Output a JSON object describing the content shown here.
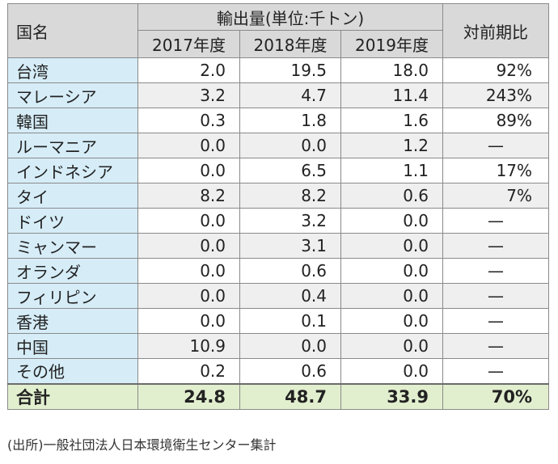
{
  "table": {
    "header": {
      "country": "国名",
      "group": "輸出量(単位:千トン)",
      "years": [
        "2017年度",
        "2018年度",
        "2019年度"
      ],
      "ratio": "対前期比"
    },
    "rows": [
      {
        "name": "台湾",
        "v2017": "2.0",
        "v2018": "19.5",
        "v2019": "18.0",
        "ratio": "92%"
      },
      {
        "name": "マレーシア",
        "v2017": "3.2",
        "v2018": "4.7",
        "v2019": "11.4",
        "ratio": "243%"
      },
      {
        "name": "韓国",
        "v2017": "0.3",
        "v2018": "1.8",
        "v2019": "1.6",
        "ratio": "89%"
      },
      {
        "name": "ルーマニア",
        "v2017": "0.0",
        "v2018": "0.0",
        "v2019": "1.2",
        "ratio": "—"
      },
      {
        "name": "インドネシア",
        "v2017": "0.0",
        "v2018": "6.5",
        "v2019": "1.1",
        "ratio": "17%"
      },
      {
        "name": "タイ",
        "v2017": "8.2",
        "v2018": "8.2",
        "v2019": "0.6",
        "ratio": "7%"
      },
      {
        "name": "ドイツ",
        "v2017": "0.0",
        "v2018": "3.2",
        "v2019": "0.0",
        "ratio": "—"
      },
      {
        "name": "ミャンマー",
        "v2017": "0.0",
        "v2018": "3.1",
        "v2019": "0.0",
        "ratio": "—"
      },
      {
        "name": "オランダ",
        "v2017": "0.0",
        "v2018": "0.6",
        "v2019": "0.0",
        "ratio": "—"
      },
      {
        "name": "フィリピン",
        "v2017": "0.0",
        "v2018": "0.4",
        "v2019": "0.0",
        "ratio": "—"
      },
      {
        "name": "香港",
        "v2017": "0.0",
        "v2018": "0.1",
        "v2019": "0.0",
        "ratio": "—"
      },
      {
        "name": "中国",
        "v2017": "10.9",
        "v2018": "0.0",
        "v2019": "0.0",
        "ratio": "—"
      },
      {
        "name": "その他",
        "v2017": "0.2",
        "v2018": "0.6",
        "v2019": "0.0",
        "ratio": "—"
      }
    ],
    "total": {
      "name": "合計",
      "v2017": "24.8",
      "v2018": "48.7",
      "v2019": "33.9",
      "ratio": "70%"
    }
  },
  "source": "(出所)一般社団法人日本環境衛生センター集計"
}
